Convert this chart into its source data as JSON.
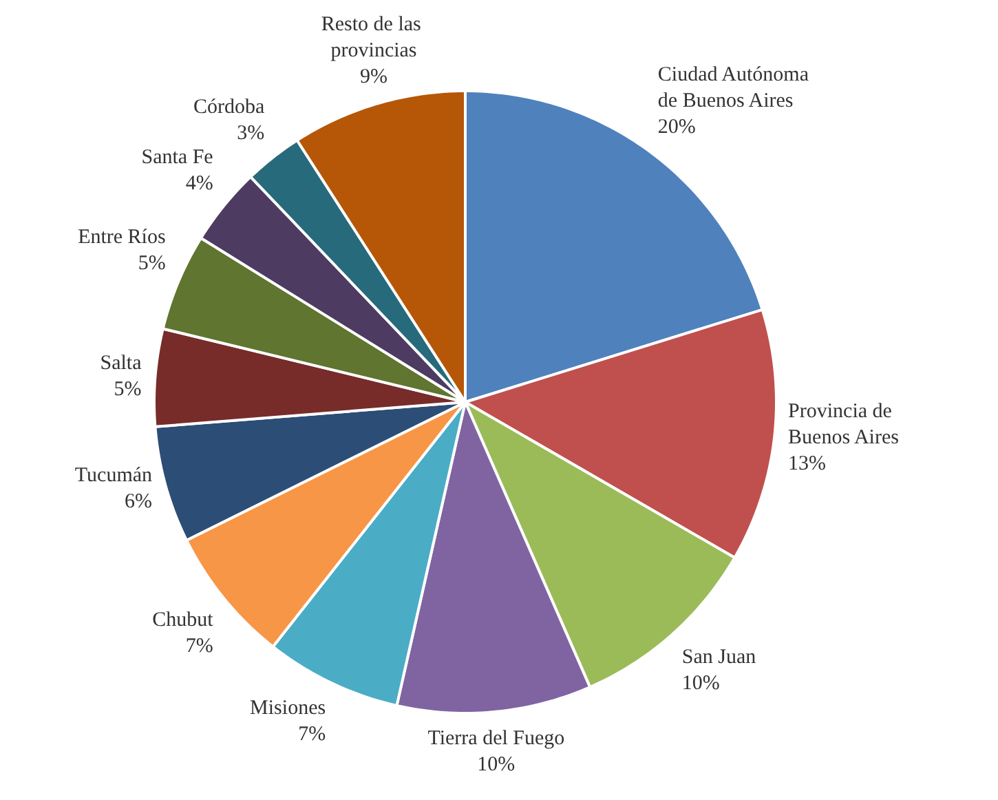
{
  "chart_data": {
    "type": "pie",
    "categories": [
      "Ciudad Autónoma de Buenos Aires",
      "Provincia de Buenos Aires",
      "San Juan",
      "Tierra del Fuego",
      "Misiones",
      "Chubut",
      "Tucumán",
      "Salta",
      "Entre Ríos",
      "Santa Fe",
      "Córdoba",
      "Resto de las provincias"
    ],
    "values": [
      20,
      13,
      10,
      10,
      7,
      7,
      6,
      5,
      5,
      4,
      3,
      9
    ],
    "value_labels": [
      "20%",
      "13%",
      "10%",
      "10%",
      "7%",
      "7%",
      "6%",
      "5%",
      "5%",
      "4%",
      "3%",
      "9%"
    ],
    "colors": [
      "#4f81bd",
      "#c0504d",
      "#9bbb59",
      "#8064a2",
      "#4bacc6",
      "#f79646",
      "#2c4d75",
      "#772c2a",
      "#5f7530",
      "#4d3b62",
      "#276a7c",
      "#b65708"
    ]
  }
}
